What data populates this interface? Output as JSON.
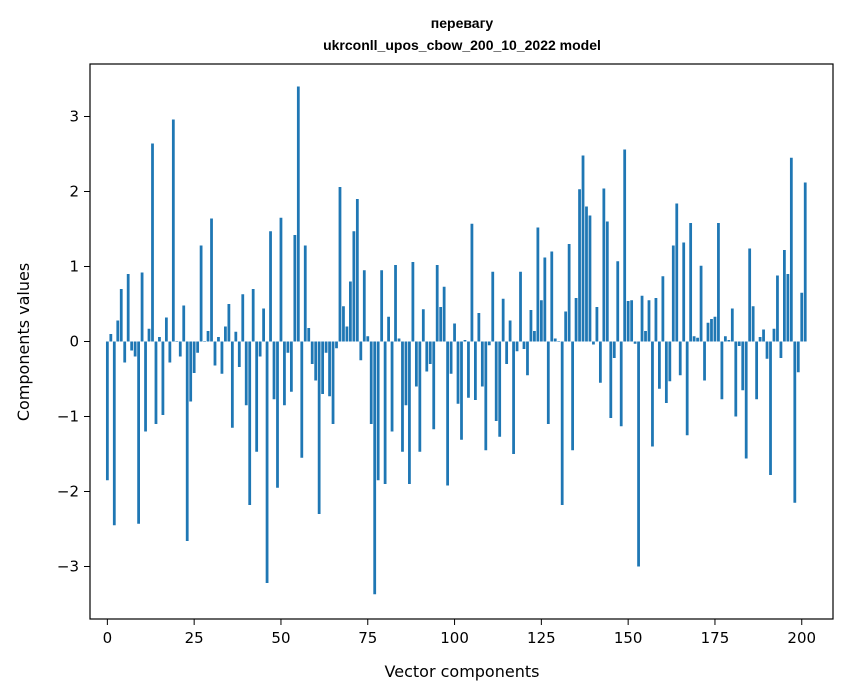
{
  "chart_data": {
    "type": "bar",
    "title_line1": "перевагу",
    "title_line2": "ukrconll_upos_cbow_200_10_2022 model",
    "xlabel": "Vector components",
    "ylabel": "Components values",
    "xlim": [
      -5,
      209
    ],
    "ylim": [
      -3.7,
      3.7
    ],
    "x_ticks": [
      0,
      25,
      50,
      75,
      100,
      125,
      150,
      175,
      200
    ],
    "x_tick_labels": [
      "0",
      "25",
      "50",
      "75",
      "100",
      "125",
      "150",
      "175",
      "200"
    ],
    "y_ticks": [
      -3,
      -2,
      -1,
      0,
      1,
      2,
      3
    ],
    "y_tick_labels": [
      "−3",
      "−2",
      "−1",
      "0",
      "1",
      "2",
      "3"
    ],
    "bar_color": "#1f77b4",
    "grid": false,
    "values": [
      -1.85,
      0.1,
      -2.45,
      0.28,
      0.7,
      -0.28,
      0.9,
      -0.12,
      -0.2,
      -2.43,
      0.92,
      -1.2,
      0.17,
      2.64,
      -1.1,
      0.06,
      -0.98,
      0.32,
      -0.28,
      2.96,
      0.0,
      -0.2,
      0.48,
      -2.66,
      -0.8,
      -0.42,
      -0.15,
      1.28,
      0.0,
      0.14,
      1.64,
      -0.32,
      0.06,
      -0.43,
      0.2,
      0.5,
      -1.15,
      0.13,
      -0.34,
      0.63,
      -0.85,
      -2.18,
      0.7,
      -1.47,
      -0.2,
      0.44,
      -3.22,
      1.47,
      -0.77,
      -1.95,
      1.65,
      -0.85,
      -0.15,
      -0.67,
      1.42,
      3.4,
      -1.55,
      1.28,
      0.18,
      -0.3,
      -0.52,
      -2.3,
      -0.7,
      -0.15,
      -0.73,
      -1.1,
      -0.09,
      2.06,
      0.47,
      0.2,
      0.8,
      1.47,
      1.9,
      -0.25,
      0.95,
      0.07,
      -1.1,
      -3.37,
      -1.85,
      0.95,
      -1.9,
      0.33,
      -1.2,
      1.02,
      0.04,
      -1.47,
      -0.85,
      -1.9,
      1.06,
      -0.6,
      -1.47,
      0.43,
      -0.4,
      -0.3,
      -1.17,
      1.02,
      0.46,
      0.73,
      -1.92,
      -0.43,
      0.24,
      -0.83,
      -1.31,
      0.02,
      -0.75,
      1.57,
      -0.78,
      0.38,
      -0.6,
      -1.45,
      -0.05,
      0.93,
      -1.06,
      -1.27,
      0.57,
      -0.3,
      0.28,
      -1.5,
      -0.13,
      0.93,
      -0.1,
      -0.45,
      0.42,
      0.14,
      1.52,
      0.55,
      1.12,
      -1.1,
      1.2,
      0.04,
      0.0,
      -2.18,
      0.4,
      1.3,
      -1.45,
      0.58,
      2.03,
      2.48,
      1.8,
      1.68,
      -0.04,
      0.46,
      -0.55,
      2.04,
      1.6,
      -1.02,
      -0.22,
      1.07,
      -1.13,
      2.56,
      0.54,
      0.55,
      -0.03,
      -3.0,
      0.61,
      0.14,
      0.55,
      -1.4,
      0.58,
      -0.63,
      0.87,
      -0.82,
      -0.53,
      1.28,
      1.84,
      -0.45,
      1.32,
      -1.25,
      1.58,
      0.07,
      0.05,
      1.01,
      -0.52,
      0.25,
      0.3,
      0.33,
      1.58,
      -0.77,
      0.07,
      0.02,
      0.44,
      -1.0,
      -0.06,
      -0.65,
      -1.56,
      1.24,
      0.47,
      -0.77,
      0.06,
      0.16,
      -0.23,
      -1.78,
      0.17,
      0.88,
      -0.22,
      1.22,
      0.9,
      2.45,
      -2.15,
      -0.41,
      0.65,
      2.12
    ]
  }
}
